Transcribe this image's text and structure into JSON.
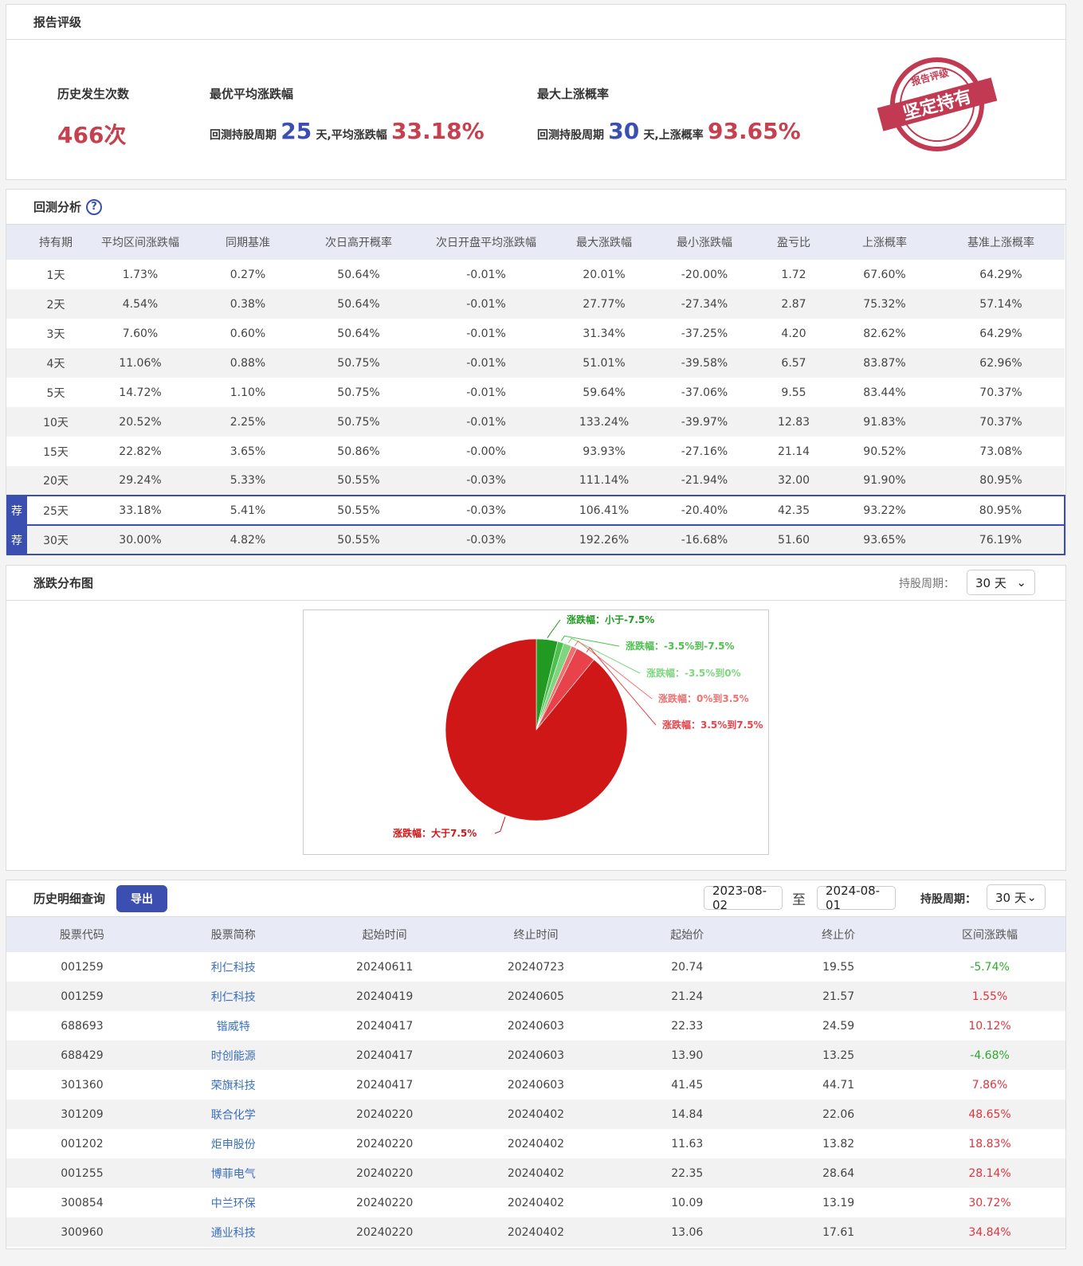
{
  "rating": {
    "title": "报告评级",
    "count_label": "历史发生次数",
    "count_value": "466次",
    "best_avg_label": "最优平均涨跌幅",
    "best_prefix": "回测持股周期",
    "best_days": "25",
    "best_mid": "天,平均涨跌幅",
    "best_value": "33.18%",
    "max_prob_label": "最大上涨概率",
    "prob_prefix": "回测持股周期",
    "prob_days": "30",
    "prob_mid": "天,上涨概率",
    "prob_value": "93.65%",
    "stamp_top": "报告评级",
    "stamp_main": "坚定持有"
  },
  "backtest": {
    "title": "回测分析",
    "help": "?",
    "badge": "荐",
    "columns": [
      "持有期",
      "平均区间涨跌幅",
      "同期基准",
      "次日高开概率",
      "次日开盘平均涨跌幅",
      "最大涨跌幅",
      "最小涨跌幅",
      "盈亏比",
      "上涨概率",
      "基准上涨概率"
    ],
    "rows": [
      [
        "1天",
        "1.73%",
        "0.27%",
        "50.64%",
        "-0.01%",
        "20.01%",
        "-20.00%",
        "1.72",
        "67.60%",
        "64.29%"
      ],
      [
        "2天",
        "4.54%",
        "0.38%",
        "50.64%",
        "-0.01%",
        "27.77%",
        "-27.34%",
        "2.87",
        "75.32%",
        "57.14%"
      ],
      [
        "3天",
        "7.60%",
        "0.60%",
        "50.64%",
        "-0.01%",
        "31.34%",
        "-37.25%",
        "4.20",
        "82.62%",
        "64.29%"
      ],
      [
        "4天",
        "11.06%",
        "0.88%",
        "50.75%",
        "-0.01%",
        "51.01%",
        "-39.58%",
        "6.57",
        "83.87%",
        "62.96%"
      ],
      [
        "5天",
        "14.72%",
        "1.10%",
        "50.75%",
        "-0.01%",
        "59.64%",
        "-37.06%",
        "9.55",
        "83.44%",
        "70.37%"
      ],
      [
        "10天",
        "20.52%",
        "2.25%",
        "50.75%",
        "-0.01%",
        "133.24%",
        "-39.97%",
        "12.83",
        "91.83%",
        "70.37%"
      ],
      [
        "15天",
        "22.82%",
        "3.65%",
        "50.86%",
        "-0.00%",
        "93.93%",
        "-27.16%",
        "21.14",
        "90.52%",
        "73.08%"
      ],
      [
        "20天",
        "29.24%",
        "5.33%",
        "50.55%",
        "-0.03%",
        "111.14%",
        "-21.94%",
        "32.00",
        "91.90%",
        "80.95%"
      ],
      [
        "25天",
        "33.18%",
        "5.41%",
        "50.55%",
        "-0.03%",
        "106.41%",
        "-20.40%",
        "42.35",
        "93.22%",
        "80.95%"
      ],
      [
        "30天",
        "30.00%",
        "4.82%",
        "50.55%",
        "-0.03%",
        "192.26%",
        "-16.68%",
        "51.60",
        "93.65%",
        "76.19%"
      ]
    ],
    "recommended": [
      8,
      9
    ]
  },
  "distribution": {
    "title": "涨跌分布图",
    "period_label": "持股周期：",
    "period_value": "30 天"
  },
  "chart_data": {
    "type": "pie",
    "slices": [
      {
        "label": "涨跌幅：小于-7.5%",
        "value": 3.8,
        "color": "#229a22"
      },
      {
        "label": "涨跌幅：-3.5%到-7.5%",
        "value": 1.1,
        "color": "#4cbf4c"
      },
      {
        "label": "涨跌幅：-3.5%到0%",
        "value": 1.45,
        "color": "#7ed67e"
      },
      {
        "label": "涨跌幅：0%到3.5%",
        "value": 1.0,
        "color": "#f07070"
      },
      {
        "label": "涨跌幅：3.5%到7.5%",
        "value": 3.6,
        "color": "#e8434b"
      },
      {
        "label": "涨跌幅：大于7.5%",
        "value": 89.05,
        "color": "#cf1717"
      }
    ]
  },
  "history": {
    "title": "历史明细查询",
    "export": "导出",
    "start_date": "2023-08-02",
    "to": "至",
    "end_date": "2024-08-01",
    "period_label": "持股周期：",
    "period_value": "30 天",
    "columns": [
      "股票代码",
      "股票简称",
      "起始时间",
      "终止时间",
      "起始价",
      "终止价",
      "区间涨跌幅"
    ],
    "rows": [
      [
        "001259",
        "利仁科技",
        "20240611",
        "20240723",
        "20.74",
        "19.55",
        "-5.74%"
      ],
      [
        "001259",
        "利仁科技",
        "20240419",
        "20240605",
        "21.24",
        "21.57",
        "1.55%"
      ],
      [
        "688693",
        "锴威特",
        "20240417",
        "20240603",
        "22.33",
        "24.59",
        "10.12%"
      ],
      [
        "688429",
        "时创能源",
        "20240417",
        "20240603",
        "13.90",
        "13.25",
        "-4.68%"
      ],
      [
        "301360",
        "荣旗科技",
        "20240417",
        "20240603",
        "41.45",
        "44.71",
        "7.86%"
      ],
      [
        "301209",
        "联合化学",
        "20240220",
        "20240402",
        "14.84",
        "22.06",
        "48.65%"
      ],
      [
        "001202",
        "炬申股份",
        "20240220",
        "20240402",
        "11.63",
        "13.82",
        "18.83%"
      ],
      [
        "001255",
        "博菲电气",
        "20240220",
        "20240402",
        "22.35",
        "28.64",
        "28.14%"
      ],
      [
        "300854",
        "中兰环保",
        "20240220",
        "20240402",
        "10.09",
        "13.19",
        "30.72%"
      ],
      [
        "300960",
        "通业科技",
        "20240220",
        "20240402",
        "13.06",
        "17.61",
        "34.84%"
      ]
    ]
  }
}
